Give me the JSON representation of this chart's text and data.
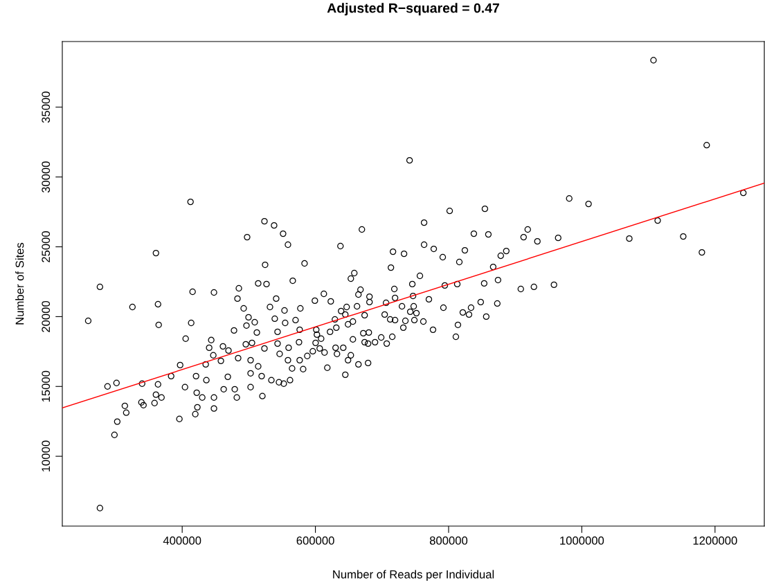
{
  "chart_data": {
    "type": "scatter",
    "title": "Adjusted R−squared = 0.47",
    "xlabel": "Number of Reads per Individual",
    "ylabel": "Number of Sites",
    "xlim": [
      220000,
      1274000
    ],
    "ylim": [
      5000,
      39700
    ],
    "xticks": [
      400000,
      600000,
      800000,
      1000000,
      1200000
    ],
    "yticks": [
      10000,
      15000,
      20000,
      25000,
      30000,
      35000
    ],
    "grid": false,
    "series": [
      {
        "type": "scatter",
        "color": "#000000",
        "marker": "circle",
        "x": [
          741400,
          412500,
          360600,
          523500,
          538000,
          551500,
          497500,
          558800,
          669800,
          637600,
          716500,
          733100,
          713400,
          524500,
          583700,
          658400,
          653200,
          276500,
          514100,
          526600,
          566000,
          485100,
          1107600,
          1187500,
          1242500,
          981100,
          1010100,
          801600,
          854500,
          763200,
          918800,
          1113900,
          763200,
          837900,
          859700,
          912600,
          933300,
          964500,
          1071300,
          1152300,
          1180300,
          777700,
          791200,
          824400,
          816100,
          878300,
          886600,
          866900,
          756900,
          745500,
          794300,
          813000,
          853400,
          874200,
          908400,
          928100,
          958200,
          746600,
          770400,
          747600,
          792200,
          742400,
          751700,
          848200,
          873100,
          821300,
          833700,
          830600,
          856500,
          748600,
          762100,
          814000,
          776600,
          810900,
          276500,
          258900,
          325300,
          363700,
          364700,
          287900,
          301400,
          302500,
          298300,
          313900,
          316000,
          338800,
          341900,
          339800,
          363700,
          360600,
          368900,
          358500,
          395800,
          383400,
          396900,
          404200,
          405200,
          413500,
          415600,
          447700,
          483000,
          420800,
          421800,
          430100,
          419700,
          422800,
          447700,
          447700,
          436300,
          435300,
          443600,
          440500,
          446700,
          477800,
          461200,
          469500,
          458100,
          468500,
          462300,
          482000,
          478900,
          484000,
          492300,
          499600,
          496500,
          508900,
          512100,
          495500,
          504800,
          502700,
          514100,
          502700,
          502700,
          520400,
          519300,
          533900,
          545300,
          552500,
          523500,
          531800,
          541100,
          539000,
          553600,
          554600,
          543200,
          543200,
          559800,
          546300,
          558800,
          576400,
          561900,
          565000,
          581600,
          577400,
          570200,
          576400,
          575400,
          587800,
          596100,
          599200,
          612700,
          623100,
          601300,
          602300,
          608600,
          600300,
          606500,
          613700,
          617900,
          629300,
          622000,
          631400,
          630300,
          632400,
          641800,
          644900,
          638600,
          644900,
          646900,
          649000,
          656300,
          656300,
          649000,
          653200,
          662500,
          667700,
          664600,
          681200,
          681200,
          673900,
          671900,
          680200,
          673900,
          679100,
          689500,
          698800,
          707100,
          715400,
          664600,
          679100,
          704000,
          712300,
          719600,
          706100,
          730000,
          718500,
          719600,
          732000,
          735100
        ],
        "values": [
          31190,
          28220,
          24550,
          26830,
          26530,
          25940,
          25690,
          25150,
          26240,
          25050,
          24650,
          24500,
          23510,
          23710,
          23810,
          23120,
          22720,
          22130,
          22380,
          22330,
          22570,
          22030,
          38360,
          32280,
          28860,
          28460,
          28070,
          27570,
          27720,
          26730,
          26240,
          26880,
          25150,
          25940,
          25890,
          25690,
          25390,
          25640,
          25590,
          25740,
          24600,
          24850,
          24260,
          24750,
          23910,
          24360,
          24700,
          23560,
          22920,
          22330,
          22230,
          22330,
          22380,
          22620,
          21980,
          22130,
          22280,
          21480,
          21240,
          20740,
          20640,
          20350,
          20250,
          21040,
          20940,
          20300,
          20640,
          20150,
          20000,
          19750,
          19650,
          19410,
          19060,
          18560,
          6290,
          19700,
          20690,
          20890,
          19410,
          15000,
          15250,
          12480,
          11530,
          13610,
          13120,
          13860,
          13660,
          15200,
          15150,
          14410,
          14210,
          13810,
          12670,
          15740,
          16530,
          14950,
          18420,
          19550,
          21780,
          21730,
          21290,
          15740,
          14550,
          14210,
          13020,
          13510,
          13420,
          14210,
          15450,
          16580,
          18320,
          17770,
          17230,
          19010,
          17870,
          17570,
          16830,
          15690,
          14800,
          14210,
          14800,
          17030,
          20590,
          19950,
          19360,
          19600,
          18860,
          18020,
          18120,
          16880,
          16440,
          15940,
          14950,
          14310,
          15740,
          15450,
          15300,
          15200,
          17720,
          20690,
          21290,
          19850,
          20440,
          19550,
          18910,
          18070,
          17770,
          17330,
          16880,
          16880,
          15450,
          16290,
          16240,
          20590,
          19750,
          19060,
          18170,
          17180,
          17520,
          21140,
          21630,
          21090,
          19060,
          18710,
          18420,
          18120,
          17720,
          17430,
          16340,
          19800,
          18910,
          19210,
          17770,
          17330,
          17770,
          15840,
          20400,
          20150,
          20690,
          19450,
          19650,
          18370,
          16880,
          17230,
          20740,
          21930,
          21580,
          21430,
          21040,
          20100,
          18810,
          18860,
          18170,
          18070,
          18170,
          18510,
          18070,
          18560,
          16580,
          16680,
          20150,
          19800,
          19750,
          20990,
          20740,
          21980,
          21340,
          19210,
          19700
        ]
      },
      {
        "type": "line",
        "color": "#ff0000",
        "x": [
          220000,
          1274000
        ],
        "values": [
          13460,
          29560
        ]
      }
    ]
  }
}
